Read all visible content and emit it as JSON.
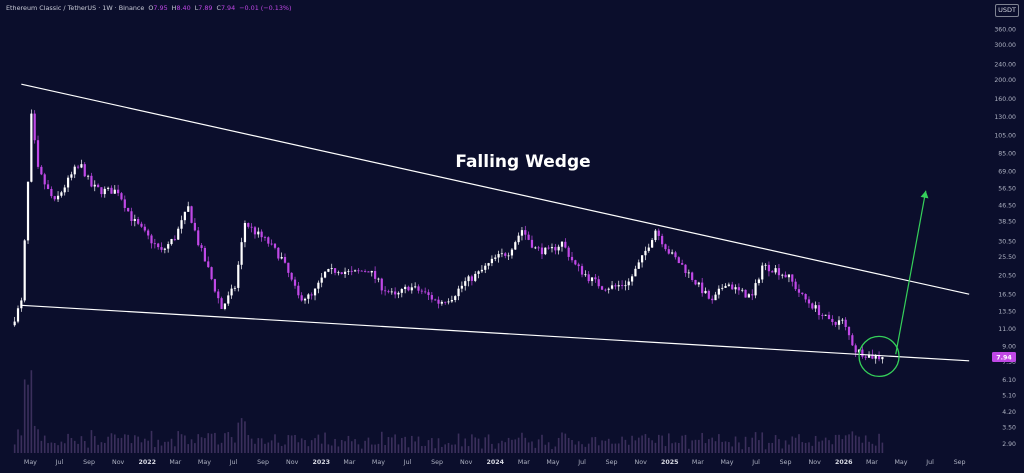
{
  "header": {
    "symbol": "Ethereum Classic / TetherUS · 1W · Binance",
    "o_label": "O",
    "o_value": "7.95",
    "h_label": "H",
    "h_value": "8.40",
    "l_label": "L",
    "l_value": "7.89",
    "c_label": "C",
    "c_value": "7.94",
    "change": "−0.01 (−0.13%)"
  },
  "currency": "USDT",
  "annotation": "Falling Wedge",
  "price_tag": "7.94",
  "colors": {
    "background": "#0b0e2c",
    "up": "#ffffff",
    "down": "#c048e6",
    "wedge_line": "#ffffff",
    "arrow": "#35d05a",
    "circle": "#35d05a",
    "volume": "#3b2f5c"
  },
  "chart_data": {
    "type": "candlestick",
    "title": "Ethereum Classic / TetherUS · 1W · Binance",
    "ylabel": "USDT",
    "y_scale": "log",
    "ylim": [
      2.6,
      430
    ],
    "y_ticks": [
      "360.00",
      "300.00",
      "240.00",
      "200.00",
      "160.00",
      "130.00",
      "105.00",
      "85.00",
      "69.00",
      "56.50",
      "46.50",
      "38.50",
      "30.50",
      "25.50",
      "20.50",
      "16.50",
      "13.50",
      "11.00",
      "9.00",
      "7.50",
      "6.10",
      "5.10",
      "4.20",
      "3.50",
      "2.90"
    ],
    "x_labels": [
      "May",
      "Jul",
      "Sep",
      "Nov",
      "2022",
      "Mar",
      "May",
      "Jul",
      "Sep",
      "Nov",
      "2023",
      "Mar",
      "May",
      "Jul",
      "Sep",
      "Nov",
      "2024",
      "Mar",
      "May",
      "Jul",
      "Sep",
      "Nov",
      "2025",
      "Mar",
      "May",
      "Jul",
      "Sep",
      "Nov",
      "2026",
      "Mar",
      "May",
      "Jul",
      "Sep"
    ],
    "x_label_dates": [
      "2021-05",
      "2021-07",
      "2021-09",
      "2021-11",
      "2022-01",
      "2022-03",
      "2022-05",
      "2022-07",
      "2022-09",
      "2022-11",
      "2023-01",
      "2023-03",
      "2023-05",
      "2023-07",
      "2023-09",
      "2023-11",
      "2024-01",
      "2024-03",
      "2024-05",
      "2024-07",
      "2024-09",
      "2024-11",
      "2025-01",
      "2025-03",
      "2025-05",
      "2025-07",
      "2025-09",
      "2025-11",
      "2026-01",
      "2026-03",
      "2026-05",
      "2026-07",
      "2026-09"
    ],
    "price_path": [
      [
        "2021-03-29",
        11.5
      ],
      [
        "2021-04-19",
        15
      ],
      [
        "2021-05-03",
        60
      ],
      [
        "2021-05-10",
        130
      ],
      [
        "2021-05-24",
        70
      ],
      [
        "2021-06-14",
        55
      ],
      [
        "2021-06-28",
        48
      ],
      [
        "2021-07-19",
        58
      ],
      [
        "2021-08-09",
        70
      ],
      [
        "2021-08-23",
        73
      ],
      [
        "2021-09-13",
        58
      ],
      [
        "2021-10-04",
        55
      ],
      [
        "2021-11-08",
        55
      ],
      [
        "2021-12-06",
        40
      ],
      [
        "2022-01-10",
        32
      ],
      [
        "2022-02-07",
        27
      ],
      [
        "2022-03-07",
        32
      ],
      [
        "2022-04-04",
        45
      ],
      [
        "2022-04-25",
        30
      ],
      [
        "2022-05-16",
        22
      ],
      [
        "2022-06-13",
        14
      ],
      [
        "2022-07-11",
        18
      ],
      [
        "2022-08-01",
        38
      ],
      [
        "2022-08-22",
        34
      ],
      [
        "2022-09-19",
        30
      ],
      [
        "2022-10-17",
        25
      ],
      [
        "2022-11-21",
        16
      ],
      [
        "2022-12-19",
        16
      ],
      [
        "2023-01-16",
        21
      ],
      [
        "2023-02-13",
        22
      ],
      [
        "2023-03-13",
        21
      ],
      [
        "2023-04-17",
        22
      ],
      [
        "2023-05-15",
        18
      ],
      [
        "2023-06-12",
        16
      ],
      [
        "2023-07-10",
        18
      ],
      [
        "2023-08-07",
        17
      ],
      [
        "2023-09-11",
        15
      ],
      [
        "2023-10-09",
        16
      ],
      [
        "2023-11-06",
        19
      ],
      [
        "2023-12-04",
        21
      ],
      [
        "2024-01-08",
        25
      ],
      [
        "2024-02-05",
        27
      ],
      [
        "2024-03-04",
        35
      ],
      [
        "2024-04-01",
        28
      ],
      [
        "2024-04-29",
        27
      ],
      [
        "2024-05-27",
        30
      ],
      [
        "2024-06-24",
        23
      ],
      [
        "2024-07-22",
        20
      ],
      [
        "2024-08-19",
        18
      ],
      [
        "2024-09-16",
        18
      ],
      [
        "2024-10-14",
        19
      ],
      [
        "2024-11-11",
        25
      ],
      [
        "2024-12-09",
        35
      ],
      [
        "2025-01-06",
        27
      ],
      [
        "2025-02-03",
        23
      ],
      [
        "2025-03-03",
        19
      ],
      [
        "2025-04-07",
        15
      ],
      [
        "2025-05-05",
        19
      ],
      [
        "2025-06-02",
        17
      ],
      [
        "2025-06-30",
        16
      ],
      [
        "2025-07-21",
        23
      ],
      [
        "2025-08-18",
        22
      ],
      [
        "2025-09-15",
        20
      ],
      [
        "2025-10-13",
        16
      ],
      [
        "2025-11-10",
        14
      ],
      [
        "2025-12-08",
        12
      ],
      [
        "2026-01-05",
        12
      ],
      [
        "2026-02-02",
        8.6
      ],
      [
        "2026-03-09",
        8.0
      ],
      [
        "2026-03-23",
        7.94
      ]
    ],
    "series": [
      {
        "name": "",
        "type": "trendline",
        "x": [
          "2021-04-12",
          "2026-09-21"
        ],
        "values": [
          190,
          16.5
        ]
      },
      {
        "name": "",
        "type": "trendline",
        "x": [
          "2021-04-12",
          "2026-09-21"
        ],
        "values": [
          14.5,
          7.6
        ]
      },
      {
        "name": "",
        "type": "projection",
        "x": [
          "2026-04-20",
          "2026-06-22"
        ],
        "values": [
          8.2,
          55
        ]
      }
    ],
    "last_close": 7.94,
    "grid": false,
    "legend": "none"
  }
}
